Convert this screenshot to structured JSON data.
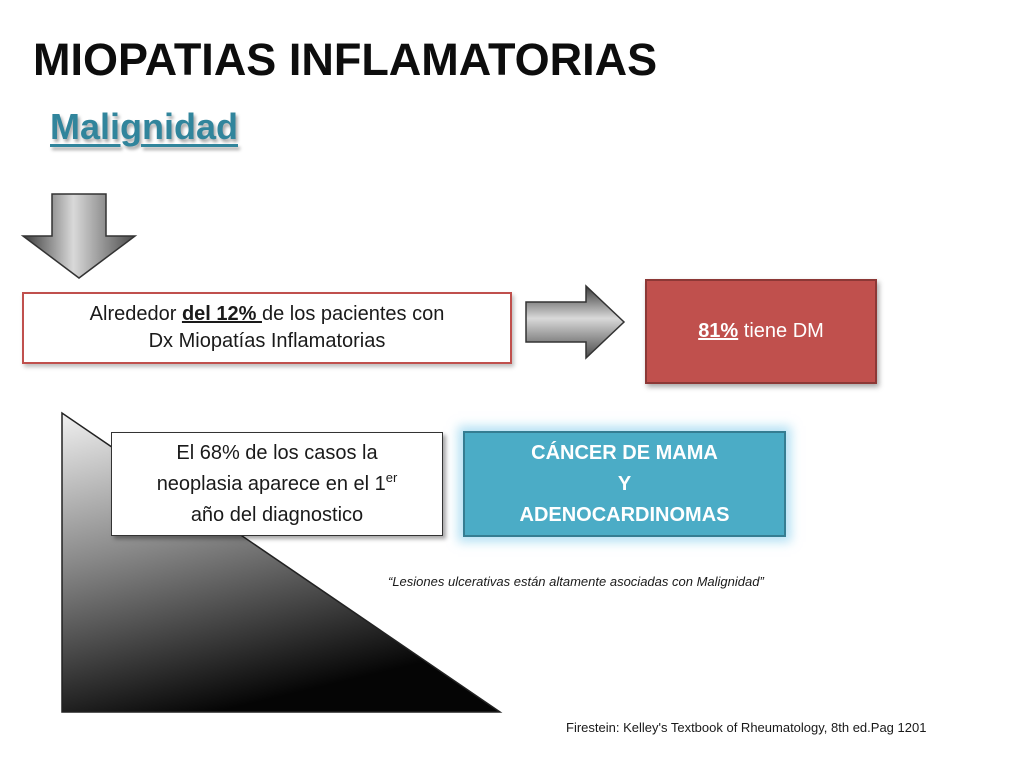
{
  "slide": {
    "title": "MIOPATIAS INFLAMATORIAS",
    "subtitle": "Malignidad",
    "patients_box": {
      "line1_pre": "Alrededor ",
      "line1_highlight": "del 12% ",
      "line1_post": " de los pacientes con",
      "line2": "Dx Miopatías Inflamatorias"
    },
    "dm_box": {
      "percent": "81%",
      "text": " tiene DM"
    },
    "diagnosis_box": {
      "line1": "El 68% de los casos la",
      "line2_pre": "neoplasia aparece en el 1",
      "line2_sup": "er",
      "line3": "año del diagnostico"
    },
    "cancer_box": {
      "line1": "CÁNCER DE MAMA",
      "line2": "Y",
      "line3": "ADENOCARDINOMAS"
    },
    "quote": "“Lesiones ulcerativas están altamente asociadas con Malignidad”",
    "citation": "Firestein: Kelley's Textbook of Rheumatology, 8th ed.Pag 1201"
  },
  "colors": {
    "title": "#0d0d0d",
    "subtitle": "#31859c",
    "red_box": "#c0504d",
    "teal_box": "#4bacc6"
  }
}
